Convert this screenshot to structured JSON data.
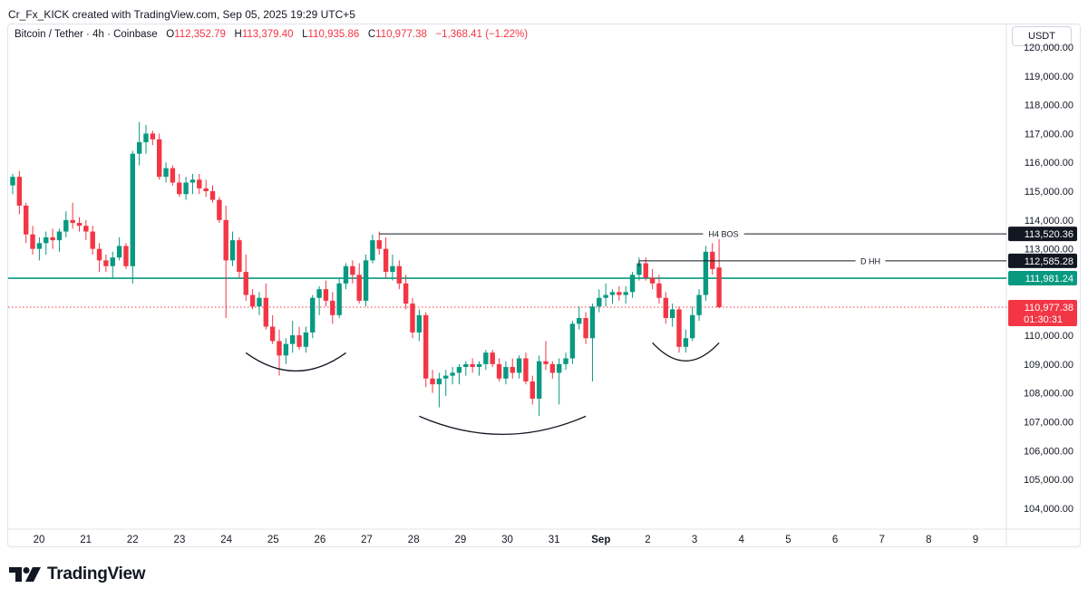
{
  "caption": "Cr_Fx_KICK created with TradingView.com, Sep 05, 2025 19:29 UTC+5",
  "legend": {
    "symbol": "Bitcoin / Tether · 4h · Coinbase",
    "o_label": "O",
    "o_value": "112,352.79",
    "h_label": "H",
    "h_value": "113,379.40",
    "l_label": "L",
    "l_value": "110,935.86",
    "c_label": "C",
    "c_value": "110,977.38",
    "change": "−1,368.41 (−1.22%)"
  },
  "currency": "USDT",
  "brand": "TradingView",
  "colors": {
    "up": "#089981",
    "down": "#f23645",
    "green_line": "#089981",
    "text": "#131722"
  },
  "chart_data": {
    "type": "candlestick",
    "timeframe": "4h",
    "y_range": [
      103400,
      120000
    ],
    "y_ticks": [
      {
        "value": 120000,
        "label": "120,000.00"
      },
      {
        "value": 119000,
        "label": "119,000.00"
      },
      {
        "value": 118000,
        "label": "118,000.00"
      },
      {
        "value": 117000,
        "label": "117,000.00"
      },
      {
        "value": 116000,
        "label": "116,000.00"
      },
      {
        "value": 115000,
        "label": "115,000.00"
      },
      {
        "value": 114000,
        "label": "114,000.00"
      },
      {
        "value": 113000,
        "label": "113,000.00"
      },
      {
        "value": 112000,
        "label": "112,000.00"
      },
      {
        "value": 111000,
        "label": "111,000.00"
      },
      {
        "value": 110000,
        "label": "110,000.00"
      },
      {
        "value": 109000,
        "label": "109,000.00"
      },
      {
        "value": 108000,
        "label": "108,000.00"
      },
      {
        "value": 107000,
        "label": "107,000.00"
      },
      {
        "value": 106000,
        "label": "106,000.00"
      },
      {
        "value": 105000,
        "label": "105,000.00"
      },
      {
        "value": 104000,
        "label": "104,000.00"
      }
    ],
    "x_ticks": [
      {
        "day": 20,
        "label": "20"
      },
      {
        "day": 21,
        "label": "21"
      },
      {
        "day": 22,
        "label": "22"
      },
      {
        "day": 23,
        "label": "23"
      },
      {
        "day": 24,
        "label": "24"
      },
      {
        "day": 25,
        "label": "25"
      },
      {
        "day": 26,
        "label": "26"
      },
      {
        "day": 27,
        "label": "27"
      },
      {
        "day": 28,
        "label": "28"
      },
      {
        "day": 29,
        "label": "29"
      },
      {
        "day": 30,
        "label": "30"
      },
      {
        "day": 31,
        "label": "31"
      },
      {
        "day": 32,
        "label": "Sep"
      },
      {
        "day": 33,
        "label": "2"
      },
      {
        "day": 34,
        "label": "3"
      },
      {
        "day": 35,
        "label": "4"
      },
      {
        "day": 36,
        "label": "5"
      },
      {
        "day": 37,
        "label": "6"
      },
      {
        "day": 38,
        "label": "7"
      },
      {
        "day": 39,
        "label": "8"
      },
      {
        "day": 40,
        "label": "9"
      }
    ],
    "candles": [
      [
        115200,
        115600,
        114900,
        115500
      ],
      [
        115500,
        115700,
        114200,
        114500
      ],
      [
        114500,
        114600,
        113200,
        113500
      ],
      [
        113500,
        113800,
        112800,
        113000
      ],
      [
        113000,
        113400,
        112600,
        113200
      ],
      [
        113200,
        113600,
        112800,
        113400
      ],
      [
        113400,
        113700,
        113000,
        113300
      ],
      [
        113300,
        113700,
        112900,
        113600
      ],
      [
        113600,
        114300,
        113400,
        114000
      ],
      [
        114000,
        114600,
        113700,
        113900
      ],
      [
        113900,
        114100,
        113600,
        113800
      ],
      [
        113800,
        114000,
        113300,
        113600
      ],
      [
        113600,
        113800,
        112800,
        113000
      ],
      [
        113000,
        113200,
        112200,
        112600
      ],
      [
        112600,
        112800,
        112200,
        112400
      ],
      [
        112400,
        112900,
        112000,
        112700
      ],
      [
        112700,
        113400,
        112600,
        113100
      ],
      [
        113100,
        113200,
        112300,
        112400
      ],
      [
        112400,
        116400,
        111800,
        116300
      ],
      [
        116300,
        117400,
        115900,
        116700
      ],
      [
        116700,
        117300,
        116300,
        117000
      ],
      [
        117000,
        117100,
        116600,
        116800
      ],
      [
        116800,
        117000,
        115400,
        115500
      ],
      [
        115500,
        116000,
        115300,
        115800
      ],
      [
        115800,
        115900,
        115200,
        115300
      ],
      [
        115300,
        115600,
        114800,
        114900
      ],
      [
        114900,
        115500,
        114700,
        115300
      ],
      [
        115300,
        115600,
        114900,
        115400
      ],
      [
        115400,
        115600,
        114900,
        115100
      ],
      [
        115100,
        115400,
        114800,
        115000
      ],
      [
        115000,
        115200,
        114600,
        114700
      ],
      [
        114700,
        114800,
        113900,
        114000
      ],
      [
        114000,
        114500,
        110600,
        112600
      ],
      [
        112600,
        113600,
        112400,
        113300
      ],
      [
        113300,
        113400,
        112000,
        112200
      ],
      [
        112200,
        112800,
        111200,
        111400
      ],
      [
        111400,
        111600,
        110900,
        111000
      ],
      [
        111000,
        111500,
        110700,
        111300
      ],
      [
        111300,
        111800,
        110200,
        110300
      ],
      [
        110300,
        110700,
        109700,
        109800
      ],
      [
        109800,
        110200,
        108600,
        109300
      ],
      [
        109300,
        109900,
        109000,
        109700
      ],
      [
        109700,
        110500,
        109400,
        110000
      ],
      [
        110000,
        110300,
        109500,
        109600
      ],
      [
        109600,
        110300,
        109400,
        110100
      ],
      [
        110100,
        111400,
        109900,
        111300
      ],
      [
        111300,
        111700,
        110700,
        111600
      ],
      [
        111600,
        111900,
        111000,
        111200
      ],
      [
        111200,
        111500,
        110400,
        110700
      ],
      [
        110700,
        112000,
        110600,
        111800
      ],
      [
        111800,
        112500,
        111600,
        112400
      ],
      [
        112400,
        112600,
        111800,
        112100
      ],
      [
        112100,
        112500,
        111100,
        111200
      ],
      [
        111200,
        112800,
        111000,
        112600
      ],
      [
        112600,
        113500,
        112500,
        113300
      ],
      [
        113300,
        113600,
        112800,
        113000
      ],
      [
        113000,
        113400,
        112000,
        112200
      ],
      [
        112200,
        112800,
        111900,
        112400
      ],
      [
        112400,
        112600,
        111600,
        111800
      ],
      [
        111800,
        112100,
        110900,
        111100
      ],
      [
        111100,
        111300,
        109900,
        110100
      ],
      [
        110100,
        110900,
        109800,
        110700
      ],
      [
        110700,
        110800,
        108200,
        108500
      ],
      [
        108500,
        108800,
        108000,
        108300
      ],
      [
        108300,
        108700,
        107500,
        108500
      ],
      [
        108500,
        108800,
        107900,
        108600
      ],
      [
        108600,
        108900,
        108300,
        108700
      ],
      [
        108700,
        109000,
        108300,
        108900
      ],
      [
        108900,
        109100,
        108600,
        109000
      ],
      [
        109000,
        109200,
        108700,
        108900
      ],
      [
        108900,
        109100,
        108600,
        109000
      ],
      [
        109000,
        109500,
        108800,
        109400
      ],
      [
        109400,
        109500,
        108900,
        109000
      ],
      [
        109000,
        109200,
        108400,
        108500
      ],
      [
        108500,
        109100,
        108300,
        108900
      ],
      [
        108900,
        109200,
        108500,
        108700
      ],
      [
        108700,
        109300,
        108500,
        109200
      ],
      [
        109200,
        109400,
        108300,
        108400
      ],
      [
        108400,
        108600,
        107600,
        107800
      ],
      [
        107800,
        109300,
        107200,
        109100
      ],
      [
        109100,
        109800,
        108800,
        109000
      ],
      [
        109000,
        109100,
        108500,
        108700
      ],
      [
        108700,
        109200,
        107600,
        109000
      ],
      [
        109000,
        109400,
        108800,
        109200
      ],
      [
        109200,
        110500,
        109000,
        110400
      ],
      [
        110400,
        111000,
        110200,
        110600
      ],
      [
        110600,
        110800,
        109700,
        109900
      ],
      [
        109900,
        111100,
        108400,
        111000
      ],
      [
        111000,
        111600,
        110800,
        111300
      ],
      [
        111300,
        111800,
        111000,
        111400
      ],
      [
        111400,
        111600,
        111100,
        111500
      ],
      [
        111500,
        111700,
        111200,
        111400
      ],
      [
        111400,
        111700,
        111100,
        111500
      ],
      [
        111500,
        112200,
        111300,
        112100
      ],
      [
        112100,
        112700,
        111900,
        112500
      ],
      [
        112500,
        112700,
        111900,
        112000
      ],
      [
        112000,
        112300,
        111600,
        111800
      ],
      [
        111800,
        112100,
        111100,
        111300
      ],
      [
        111300,
        111500,
        110400,
        110600
      ],
      [
        110600,
        111100,
        110300,
        110900
      ],
      [
        110900,
        111000,
        109400,
        109600
      ],
      [
        109600,
        110200,
        109400,
        109900
      ],
      [
        109900,
        111000,
        109800,
        110700
      ],
      [
        110700,
        111600,
        110500,
        111400
      ],
      [
        111400,
        113100,
        111200,
        112900
      ],
      [
        112900,
        113200,
        112100,
        112300
      ],
      [
        112352.79,
        113379.4,
        110935.86,
        110977.38
      ]
    ],
    "levels": [
      {
        "label": "H4 BOS",
        "value": 113520.36,
        "price_label": "113,520.36",
        "start_index": 55
      },
      {
        "label": "D HH",
        "value": 112585.28,
        "price_label": "112,585.28",
        "start_index": 94
      },
      {
        "label": "",
        "value": 111981.24,
        "price_label": "111,981.24",
        "start_index": 0
      }
    ],
    "last_price": {
      "value": 110977.38,
      "label": "110,977.38",
      "countdown": "01:30:31"
    },
    "arcs": [
      {
        "from_index": 35,
        "to_index": 50,
        "bottom_value": 108700
      },
      {
        "from_index": 61,
        "to_index": 86,
        "bottom_value": 106500
      },
      {
        "from_index": 96,
        "to_index": 106,
        "bottom_value": 109050
      }
    ]
  }
}
